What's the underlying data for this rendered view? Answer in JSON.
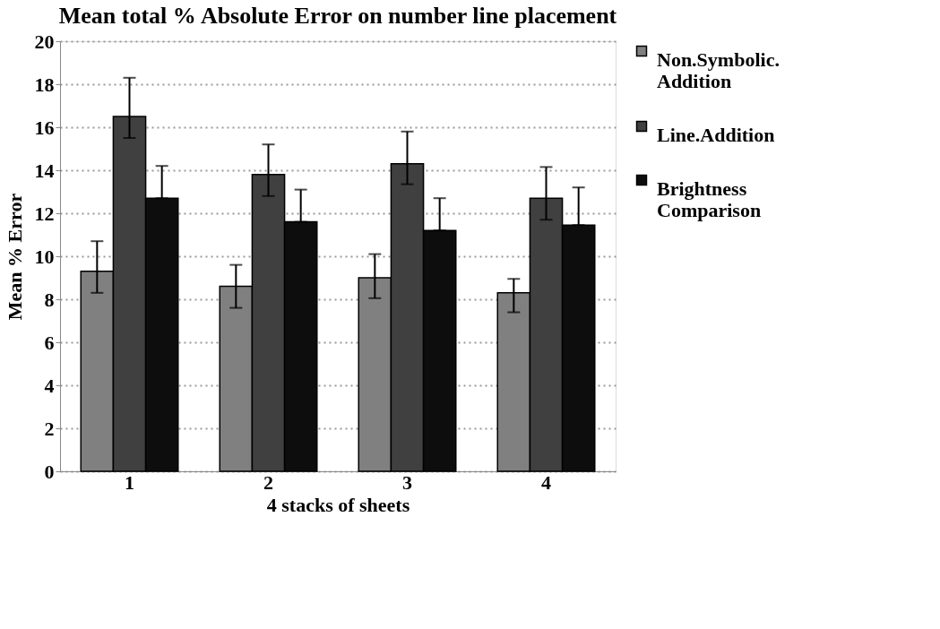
{
  "chart_data": {
    "type": "bar",
    "title": "Mean total % Absolute Error on number line placement",
    "xlabel": "4 stacks of sheets",
    "ylabel": "Mean % Error",
    "categories": [
      "1",
      "2",
      "3",
      "4"
    ],
    "series": [
      {
        "name": "Non.Symbolic. Addition",
        "color": "#808080",
        "values": [
          9.3,
          8.6,
          9.0,
          8.3
        ],
        "errors": [
          [
            8.3,
            10.7
          ],
          [
            7.6,
            9.6
          ],
          [
            8.05,
            10.1
          ],
          [
            7.4,
            8.95
          ]
        ]
      },
      {
        "name": "Line.Addition",
        "color": "#404040",
        "values": [
          16.5,
          13.8,
          14.3,
          12.7
        ],
        "errors": [
          [
            15.5,
            18.3
          ],
          [
            12.8,
            15.2
          ],
          [
            13.35,
            15.8
          ],
          [
            11.7,
            14.15
          ]
        ]
      },
      {
        "name": "Brightness Comparison",
        "color": "#0d0d0d",
        "values": [
          12.7,
          11.6,
          11.2,
          11.45
        ],
        "errors": [
          [
            12.7,
            14.2
          ],
          [
            11.6,
            13.1
          ],
          [
            11.2,
            12.7
          ],
          [
            11.45,
            13.2
          ]
        ]
      }
    ],
    "ylim": [
      0,
      20
    ],
    "yticks": [
      0,
      2,
      4,
      6,
      8,
      10,
      12,
      14,
      16,
      18,
      20
    ],
    "grid": "y",
    "legend": "right"
  }
}
